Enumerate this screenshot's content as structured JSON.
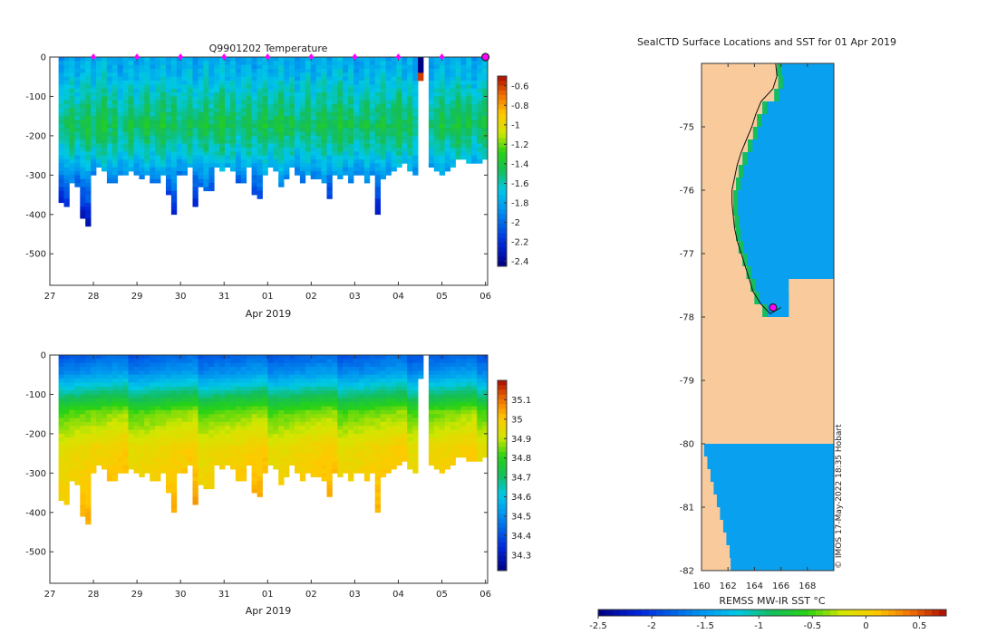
{
  "chart_data": [
    {
      "type": "heatmap",
      "title": "Q9901202  Temperature",
      "variable": "temperature",
      "xlabel": "Apr 2019",
      "x_ticks": [
        "27",
        "28",
        "29",
        "30",
        "31",
        "01",
        "02",
        "03",
        "04",
        "05",
        "06"
      ],
      "x_days": [
        27,
        28,
        29,
        30,
        31,
        32,
        33,
        34,
        35,
        36,
        37
      ],
      "xlim": [
        27,
        37.05
      ],
      "ylim": [
        -580,
        0
      ],
      "y_ticks": [
        0,
        -100,
        -200,
        -300,
        -400,
        -500
      ],
      "y_ticklabels": [
        "0",
        "-100",
        "-200",
        "-300",
        "-400",
        "-500"
      ],
      "marker_days": [
        28,
        29,
        30,
        31,
        32,
        33,
        34,
        35,
        36
      ],
      "last_position_day": 37,
      "colorbar": {
        "range": [
          -2.45,
          -0.5
        ],
        "ticks": [
          -0.6,
          -0.8,
          -1,
          -1.2,
          -1.4,
          -1.6,
          -1.8,
          -2,
          -2.2,
          -2.4
        ],
        "ticklabels": [
          "-0.6",
          "-0.8",
          "-1",
          "-1.2",
          "-1.4",
          "-1.6",
          "-1.8",
          "-2",
          "-2.2",
          "-2.4"
        ]
      },
      "profile_max_depths": [
        370,
        380,
        320,
        330,
        410,
        430,
        300,
        280,
        290,
        320,
        320,
        300,
        300,
        290,
        300,
        310,
        300,
        320,
        320,
        300,
        350,
        400,
        300,
        300,
        280,
        380,
        330,
        340,
        340,
        280,
        290,
        280,
        290,
        320,
        320,
        280,
        350,
        360,
        300,
        280,
        290,
        330,
        310,
        280,
        300,
        320,
        300,
        310,
        310,
        320,
        360,
        300,
        310,
        300,
        320,
        300,
        300,
        320,
        300,
        400,
        310,
        300,
        290,
        280,
        270,
        290,
        300,
        60,
        0,
        280,
        290,
        300,
        290,
        280,
        260,
        260,
        270,
        270,
        270,
        260
      ],
      "profile_gaps": [
        68
      ]
    },
    {
      "type": "heatmap",
      "title": "",
      "variable": "salinity",
      "xlabel": "Apr 2019",
      "x_ticks": [
        "27",
        "28",
        "29",
        "30",
        "31",
        "01",
        "02",
        "03",
        "04",
        "05",
        "06"
      ],
      "x_days": [
        27,
        28,
        29,
        30,
        31,
        32,
        33,
        34,
        35,
        36,
        37
      ],
      "xlim": [
        27,
        37.05
      ],
      "ylim": [
        -580,
        0
      ],
      "y_ticks": [
        0,
        -100,
        -200,
        -300,
        -400,
        -500
      ],
      "y_ticklabels": [
        "0",
        "-100",
        "-200",
        "-300",
        "-400",
        "-500"
      ],
      "colorbar": {
        "range": [
          34.22,
          35.2
        ],
        "ticks": [
          35.1,
          35,
          34.9,
          34.8,
          34.7,
          34.6,
          34.5,
          34.4,
          34.3
        ],
        "ticklabels": [
          "35.1",
          "35",
          "34.9",
          "34.8",
          "34.7",
          "34.6",
          "34.5",
          "34.4",
          "34.3"
        ]
      },
      "profile_max_depths": [
        370,
        380,
        320,
        330,
        410,
        430,
        300,
        280,
        290,
        320,
        320,
        300,
        300,
        290,
        300,
        310,
        300,
        320,
        320,
        300,
        350,
        400,
        300,
        300,
        280,
        380,
        330,
        340,
        340,
        280,
        290,
        280,
        290,
        320,
        320,
        280,
        350,
        360,
        300,
        280,
        290,
        330,
        310,
        280,
        300,
        320,
        300,
        310,
        310,
        320,
        360,
        300,
        310,
        300,
        320,
        300,
        300,
        320,
        300,
        400,
        310,
        300,
        290,
        280,
        270,
        290,
        300,
        60,
        0,
        280,
        290,
        300,
        290,
        280,
        260,
        260,
        270,
        270,
        270,
        260
      ],
      "profile_gaps": [
        68
      ]
    },
    {
      "type": "map",
      "title": "SealCTD Surface Locations and SST for 01 Apr 2019",
      "xlim": [
        160,
        170
      ],
      "ylim": [
        -82,
        -74
      ],
      "x_ticks": [
        160,
        162,
        164,
        166,
        168
      ],
      "x_ticklabels": [
        "160",
        "162",
        "164",
        "166",
        "168"
      ],
      "y_ticks": [
        -75,
        -76,
        -77,
        -78,
        -79,
        -80,
        -81,
        -82
      ],
      "y_ticklabels": [
        "-75",
        "-76",
        "-77",
        "-78",
        "-79",
        "-80",
        "-81",
        "-82"
      ],
      "sst_extent": {
        "lon": [
          160,
          170
        ],
        "lat": [
          -82,
          -74
        ]
      },
      "ice_shelf_lat_edge": -80,
      "seal_position": {
        "lon": 165.4,
        "lat": -77.85
      },
      "colorbar": {
        "label": "REMSS MW-IR SST °C",
        "range": [
          -2.5,
          0.75
        ],
        "ticks": [
          -2.5,
          -2,
          -1.5,
          -1,
          -0.5,
          0,
          0.5
        ],
        "ticklabels": [
          "-2.5",
          "-2",
          "-1.5",
          "-1",
          "-0.5",
          "0",
          "0.5"
        ]
      }
    }
  ],
  "credit": "© IMOS 17-May-2022 18:35 Hobart",
  "colors": {
    "land": "#f9cb9c",
    "sst_water": "#0aa0f0",
    "marker": "#ff00ff"
  }
}
